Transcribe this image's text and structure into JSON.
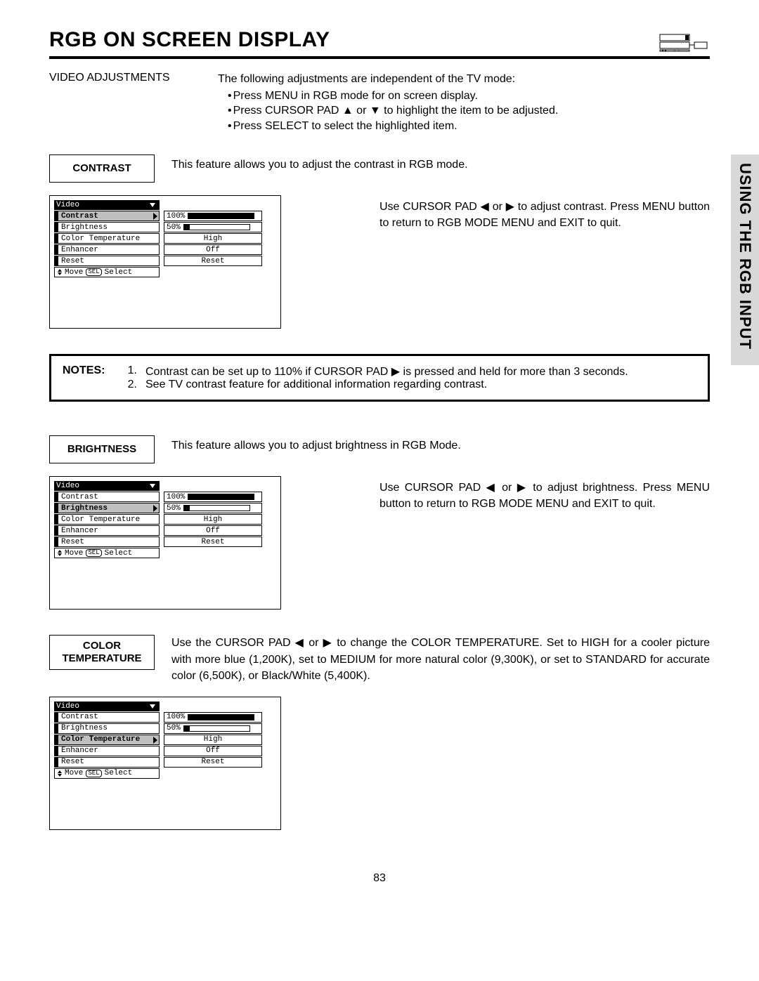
{
  "header": {
    "title": "RGB ON SCREEN DISPLAY"
  },
  "side_tab": "USING THE RGB INPUT",
  "intro": {
    "label": "VIDEO ADJUSTMENTS",
    "lead": "The following adjustments are independent of the TV mode:",
    "bullets": [
      "Press MENU in RGB mode for on screen display.",
      "Press CURSOR PAD ▲ or ▼ to highlight the item to be adjusted.",
      "Press SELECT to select the highlighted item."
    ]
  },
  "osd_common": {
    "header": "Video",
    "items": [
      "Contrast",
      "Brightness",
      "Color Temperature",
      "Enhancer",
      "Reset"
    ],
    "values": {
      "contrast": {
        "label": "100%",
        "fill_pct": 100,
        "type": "bar-filled"
      },
      "brightness": {
        "label": "50%",
        "fill_pct": 50,
        "type": "bar-open"
      },
      "color_temp": {
        "label": "High",
        "type": "text"
      },
      "enhancer": {
        "label": "Off",
        "type": "text"
      },
      "reset": {
        "label": "Reset",
        "type": "text"
      }
    },
    "footer_move": "Move",
    "footer_sel": "SEL",
    "footer_select": "Select"
  },
  "sections": {
    "contrast": {
      "box": "CONTRAST",
      "desc": "This feature allows you to adjust the contrast in RGB mode.",
      "right": "Use CURSOR PAD ◀ or ▶ to adjust contrast. Press MENU button to return to RGB MODE MENU and EXIT to quit.",
      "selected_index": 0
    },
    "brightness": {
      "box": "BRIGHTNESS",
      "desc": "This feature allows you to adjust brightness in RGB Mode.",
      "right": "Use CURSOR PAD ◀ or ▶ to adjust brightness. Press MENU button to return to RGB MODE MENU and EXIT to quit.",
      "selected_index": 1
    },
    "color_temp": {
      "box": "COLOR TEMPERATURE",
      "desc": "Use the CURSOR PAD ◀ or ▶ to change the COLOR TEMPERATURE.  Set to HIGH for a cooler picture with more blue (1,200K), set to MEDIUM for more natural color (9,300K), or set to STANDARD for accurate color (6,500K), or Black/White (5,400K).",
      "selected_index": 2
    }
  },
  "notes": {
    "label": "NOTES:",
    "items": [
      {
        "n": "1.",
        "t": "Contrast can be set up to 110% if CURSOR PAD ▶ is pressed and held for more than 3 seconds."
      },
      {
        "n": "2.",
        "t": "See TV contrast feature for additional information regarding contrast."
      }
    ]
  },
  "page_number": "83",
  "colors": {
    "black": "#000000",
    "side_tab_bg": "#d8d8d8",
    "osd_selected": "#bfbfbf"
  }
}
